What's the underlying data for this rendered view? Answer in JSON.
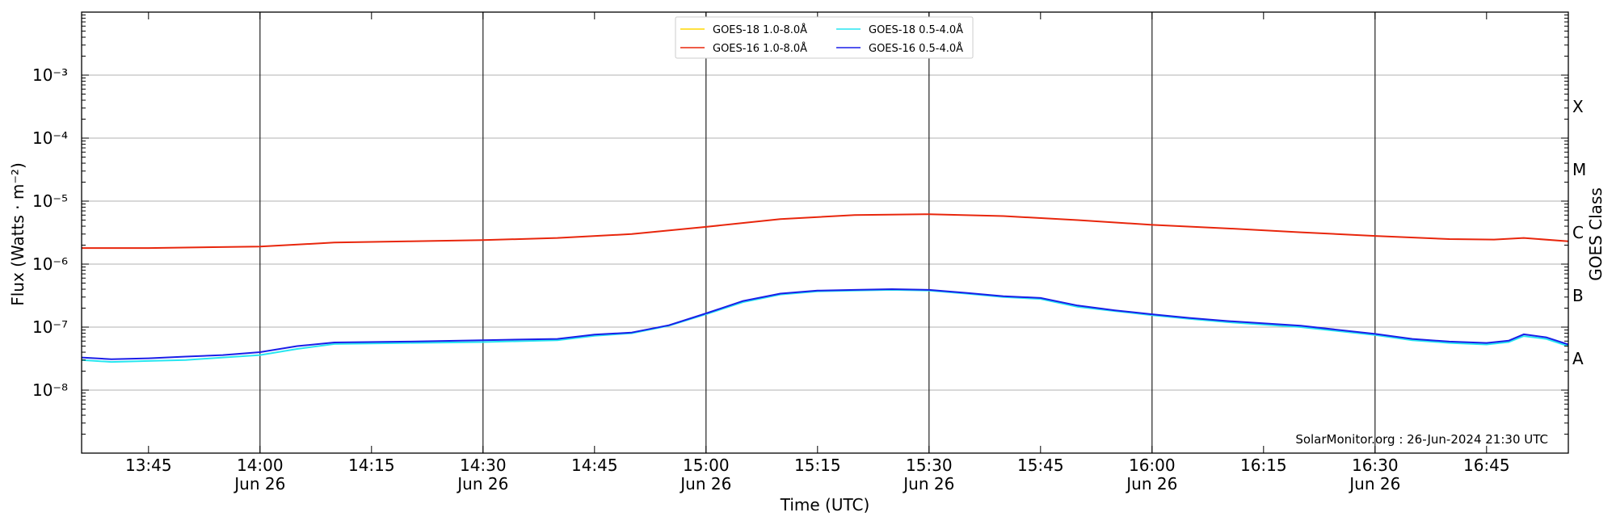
{
  "chart_data": {
    "type": "line",
    "xlabel": "Time (UTC)",
    "ylabel": "Flux (Watts · m⁻²)",
    "y2label": "GOES Class",
    "yscale": "log",
    "ylim": [
      1e-09,
      0.01
    ],
    "xlim": [
      "13:36",
      "16:56"
    ],
    "x_ticks": [
      {
        "t": "13:45",
        "label": "13:45",
        "date": ""
      },
      {
        "t": "14:00",
        "label": "14:00",
        "date": "Jun 26"
      },
      {
        "t": "14:15",
        "label": "14:15",
        "date": ""
      },
      {
        "t": "14:30",
        "label": "14:30",
        "date": "Jun 26"
      },
      {
        "t": "14:45",
        "label": "14:45",
        "date": ""
      },
      {
        "t": "15:00",
        "label": "15:00",
        "date": "Jun 26"
      },
      {
        "t": "15:15",
        "label": "15:15",
        "date": ""
      },
      {
        "t": "15:30",
        "label": "15:30",
        "date": "Jun 26"
      },
      {
        "t": "15:45",
        "label": "15:45",
        "date": ""
      },
      {
        "t": "16:00",
        "label": "16:00",
        "date": "Jun 26"
      },
      {
        "t": "16:15",
        "label": "16:15",
        "date": ""
      },
      {
        "t": "16:30",
        "label": "16:30",
        "date": "Jun 26"
      },
      {
        "t": "16:45",
        "label": "16:45",
        "date": ""
      }
    ],
    "y_ticks": [
      {
        "value": 1e-08,
        "label": "10⁻⁸"
      },
      {
        "value": 1e-07,
        "label": "10⁻⁷"
      },
      {
        "value": 1e-06,
        "label": "10⁻⁶"
      },
      {
        "value": 1e-05,
        "label": "10⁻⁵"
      },
      {
        "value": 0.0001,
        "label": "10⁻⁴"
      },
      {
        "value": 0.001,
        "label": "10⁻³"
      }
    ],
    "goes_classes": [
      {
        "label": "A",
        "value": 3.16e-08
      },
      {
        "label": "B",
        "value": 3.16e-07
      },
      {
        "label": "C",
        "value": 3.16e-06
      },
      {
        "label": "M",
        "value": 3.16e-05
      },
      {
        "label": "X",
        "value": 0.000316
      }
    ],
    "grid": true,
    "legend_position": "top-center",
    "series": [
      {
        "name": "GOES-18 1.0-8.0Å",
        "color": "#ffd700",
        "x": [],
        "values": []
      },
      {
        "name": "GOES-16 1.0-8.0Å",
        "color": "#e8260c",
        "x": [
          "13:36",
          "13:45",
          "14:00",
          "14:10",
          "14:20",
          "14:30",
          "14:40",
          "14:50",
          "15:00",
          "15:10",
          "15:20",
          "15:30",
          "15:40",
          "15:50",
          "16:00",
          "16:10",
          "16:20",
          "16:30",
          "16:40",
          "16:46",
          "16:50",
          "16:56"
        ],
        "values": [
          1.8e-06,
          1.8e-06,
          1.9e-06,
          2.2e-06,
          2.3e-06,
          2.4e-06,
          2.6e-06,
          3e-06,
          3.9e-06,
          5.2e-06,
          6e-06,
          6.2e-06,
          5.8e-06,
          5e-06,
          4.2e-06,
          3.7e-06,
          3.2e-06,
          2.8e-06,
          2.5e-06,
          2.45e-06,
          2.6e-06,
          2.3e-06
        ]
      },
      {
        "name": "GOES-18 0.5-4.0Å",
        "color": "#27e6f0",
        "x": [
          "13:36",
          "13:40",
          "13:45",
          "13:50",
          "13:55",
          "14:00",
          "14:05",
          "14:10",
          "14:20",
          "14:30",
          "14:40",
          "14:45",
          "14:50",
          "14:55",
          "15:00",
          "15:05",
          "15:10",
          "15:15",
          "15:20",
          "15:25",
          "15:30",
          "15:35",
          "15:40",
          "15:45",
          "15:50",
          "15:55",
          "16:00",
          "16:05",
          "16:10",
          "16:20",
          "16:30",
          "16:35",
          "16:40",
          "16:45",
          "16:48",
          "16:50",
          "16:53",
          "16:56"
        ],
        "values": [
          3e-08,
          2.8e-08,
          2.9e-08,
          3e-08,
          3.3e-08,
          3.6e-08,
          4.5e-08,
          5.4e-08,
          5.6e-08,
          5.8e-08,
          6.2e-08,
          7.3e-08,
          8e-08,
          1.05e-07,
          1.6e-07,
          2.5e-07,
          3.3e-07,
          3.7e-07,
          3.8e-07,
          3.9e-07,
          3.8e-07,
          3.4e-07,
          3e-07,
          2.8e-07,
          2.1e-07,
          1.8e-07,
          1.55e-07,
          1.35e-07,
          1.2e-07,
          1e-07,
          7.5e-08,
          6.2e-08,
          5.6e-08,
          5.3e-08,
          5.8e-08,
          7.2e-08,
          6.5e-08,
          5e-08
        ]
      },
      {
        "name": "GOES-16 0.5-4.0Å",
        "color": "#1a1ee8",
        "x": [
          "13:36",
          "13:40",
          "13:45",
          "13:50",
          "13:55",
          "14:00",
          "14:05",
          "14:10",
          "14:20",
          "14:30",
          "14:40",
          "14:45",
          "14:50",
          "14:55",
          "15:00",
          "15:05",
          "15:10",
          "15:15",
          "15:20",
          "15:25",
          "15:30",
          "15:35",
          "15:40",
          "15:45",
          "15:50",
          "15:55",
          "16:00",
          "16:05",
          "16:10",
          "16:20",
          "16:30",
          "16:35",
          "16:40",
          "16:45",
          "16:48",
          "16:50",
          "16:53",
          "16:56"
        ],
        "values": [
          3.3e-08,
          3.1e-08,
          3.2e-08,
          3.4e-08,
          3.6e-08,
          4e-08,
          5e-08,
          5.7e-08,
          5.9e-08,
          6.2e-08,
          6.5e-08,
          7.6e-08,
          8.2e-08,
          1.07e-07,
          1.65e-07,
          2.6e-07,
          3.4e-07,
          3.8e-07,
          3.9e-07,
          4e-07,
          3.9e-07,
          3.5e-07,
          3.1e-07,
          2.9e-07,
          2.2e-07,
          1.85e-07,
          1.6e-07,
          1.4e-07,
          1.25e-07,
          1.05e-07,
          7.8e-08,
          6.5e-08,
          5.9e-08,
          5.6e-08,
          6.1e-08,
          7.7e-08,
          6.9e-08,
          5.3e-08
        ]
      }
    ],
    "credit": "SolarMonitor.org : 26-Jun-2024 21:30 UTC"
  }
}
